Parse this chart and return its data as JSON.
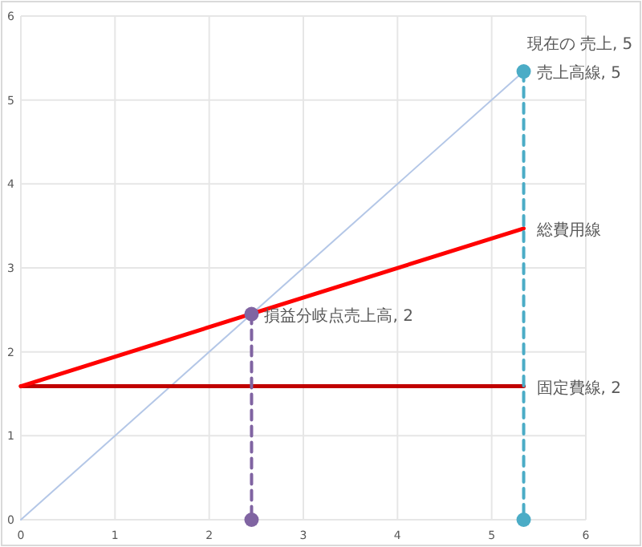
{
  "chart_data": {
    "type": "line",
    "xlim": [
      0,
      6
    ],
    "ylim": [
      0,
      6
    ],
    "xticks": [
      0,
      1,
      2,
      3,
      4,
      5,
      6
    ],
    "yticks": [
      0,
      1,
      2,
      3,
      4,
      5,
      6
    ],
    "grid": true,
    "series": [
      {
        "color": "#b4c7e7",
        "x": [
          0,
          5.34
        ],
        "values": [
          0,
          5.34
        ],
        "marker": "none",
        "value_labels": [
          null,
          "売上高線, 5"
        ]
      },
      {
        "color": "#c00000",
        "x": [
          0,
          5.34
        ],
        "values": [
          1.59,
          1.59
        ],
        "marker": "none",
        "value_labels": [
          null,
          "固定費線, 2"
        ]
      },
      {
        "color": "#ff0000",
        "x": [
          0,
          5.34
        ],
        "values": [
          1.59,
          3.47
        ],
        "marker": "none",
        "value_labels": [
          null,
          "総費用線"
        ]
      },
      {
        "color": "#8064a2",
        "x": [
          2.45,
          2.45
        ],
        "values": [
          2.45,
          0
        ],
        "marker": "circle",
        "line_style": "dashed",
        "value_labels": [
          "損益分岐点売上高, 2",
          null
        ]
      },
      {
        "color": "#4bacc6",
        "x": [
          5.34,
          5.34
        ],
        "values": [
          5.34,
          0
        ],
        "marker": "circle",
        "line_style": "dashed",
        "value_labels": [
          "現在の 売上, 5",
          null
        ]
      }
    ]
  }
}
